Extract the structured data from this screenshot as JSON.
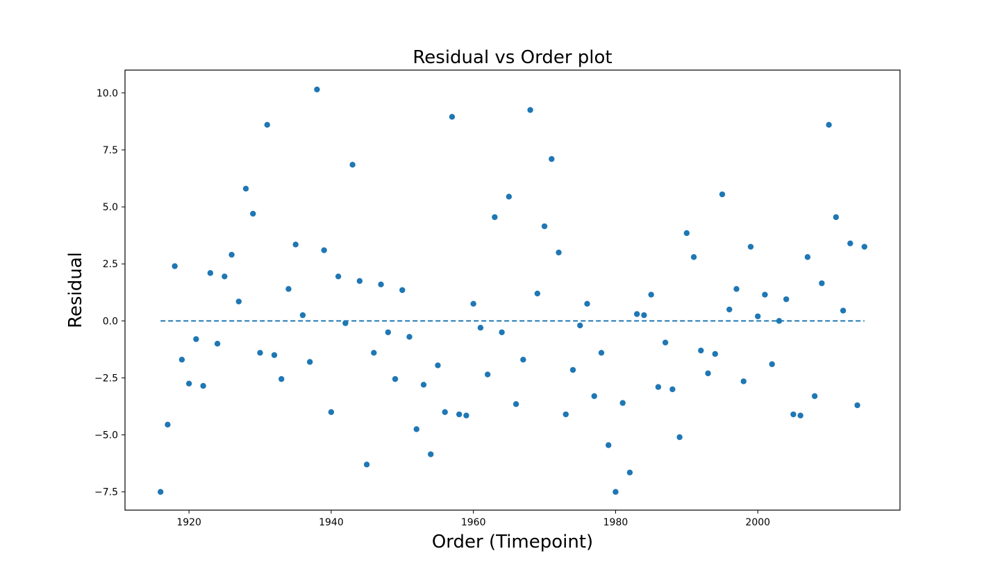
{
  "chart_data": {
    "type": "scatter",
    "title": "Residual vs Order plot",
    "xlabel": "Order (Timepoint)",
    "ylabel": "Residual",
    "xlim": [
      1911,
      2020
    ],
    "ylim": [
      -8.3,
      11.0
    ],
    "xticks": [
      1920,
      1940,
      1960,
      1980,
      2000
    ],
    "yticks": [
      -7.5,
      -5.0,
      -2.5,
      0.0,
      2.5,
      5.0,
      7.5,
      10.0
    ],
    "ytick_labels": [
      "−7.5",
      "−5.0",
      "−2.5",
      "0.0",
      "2.5",
      "5.0",
      "7.5",
      "10.0"
    ],
    "grid": false,
    "marker_color": "#1f77b4",
    "reference_line": {
      "y": 0.0,
      "x_start": 1916,
      "x_end": 2015,
      "style": "dashed",
      "color": "#1f77b4"
    },
    "series": [
      {
        "x": [
          1916,
          1917,
          1918,
          1919,
          1920,
          1921,
          1922,
          1923,
          1924,
          1925,
          1926,
          1927,
          1928,
          1929,
          1930,
          1931,
          1932,
          1933,
          1934,
          1935,
          1936,
          1937,
          1938,
          1939,
          1940,
          1941,
          1942,
          1943,
          1944,
          1945,
          1946,
          1947,
          1948,
          1949,
          1950,
          1951,
          1952,
          1953,
          1954,
          1955,
          1956,
          1957,
          1958,
          1959,
          1960,
          1961,
          1962,
          1963,
          1964,
          1965,
          1966,
          1967,
          1968,
          1969,
          1970,
          1971,
          1972,
          1973,
          1974,
          1975,
          1976,
          1977,
          1978,
          1979,
          1980,
          1981,
          1982,
          1983,
          1984,
          1985,
          1986,
          1987,
          1988,
          1989,
          1990,
          1991,
          1992,
          1993,
          1994,
          1995,
          1996,
          1997,
          1998,
          1999,
          2000,
          2001,
          2002,
          2003,
          2004,
          2005,
          2006,
          2007,
          2008,
          2009,
          2010,
          2011,
          2012,
          2013,
          2014,
          2015
        ],
        "y": [
          -7.5,
          -4.55,
          2.4,
          -1.7,
          -2.75,
          -0.8,
          -2.85,
          2.1,
          -1.0,
          1.95,
          2.9,
          0.85,
          5.8,
          4.7,
          -1.4,
          8.6,
          -1.5,
          -2.55,
          1.4,
          3.35,
          0.25,
          -1.8,
          10.15,
          3.1,
          -4.0,
          1.95,
          -0.1,
          6.85,
          1.75,
          -6.3,
          -1.4,
          1.6,
          -0.5,
          -2.55,
          1.35,
          -0.7,
          -4.75,
          -2.8,
          -5.85,
          -1.95,
          -4.0,
          8.95,
          -4.1,
          -4.15,
          0.75,
          -0.3,
          -2.35,
          4.55,
          -0.5,
          5.45,
          -3.65,
          -1.7,
          9.25,
          1.2,
          4.15,
          7.1,
          3.0,
          -4.1,
          -2.15,
          -0.2,
          0.75,
          -3.3,
          -1.4,
          -5.45,
          -7.5,
          -3.6,
          -6.65,
          0.3,
          0.25,
          1.15,
          -2.9,
          -0.95,
          -3.0,
          -5.1,
          3.85,
          2.8,
          -1.3,
          -2.3,
          -1.45,
          5.55,
          0.5,
          1.4,
          -2.65,
          3.25,
          0.2,
          1.15,
          -1.9,
          0.0,
          0.95,
          -4.1,
          -4.15,
          2.8,
          -3.3,
          1.65,
          8.6,
          4.55,
          0.45,
          3.4,
          -3.7,
          3.25
        ]
      }
    ]
  }
}
